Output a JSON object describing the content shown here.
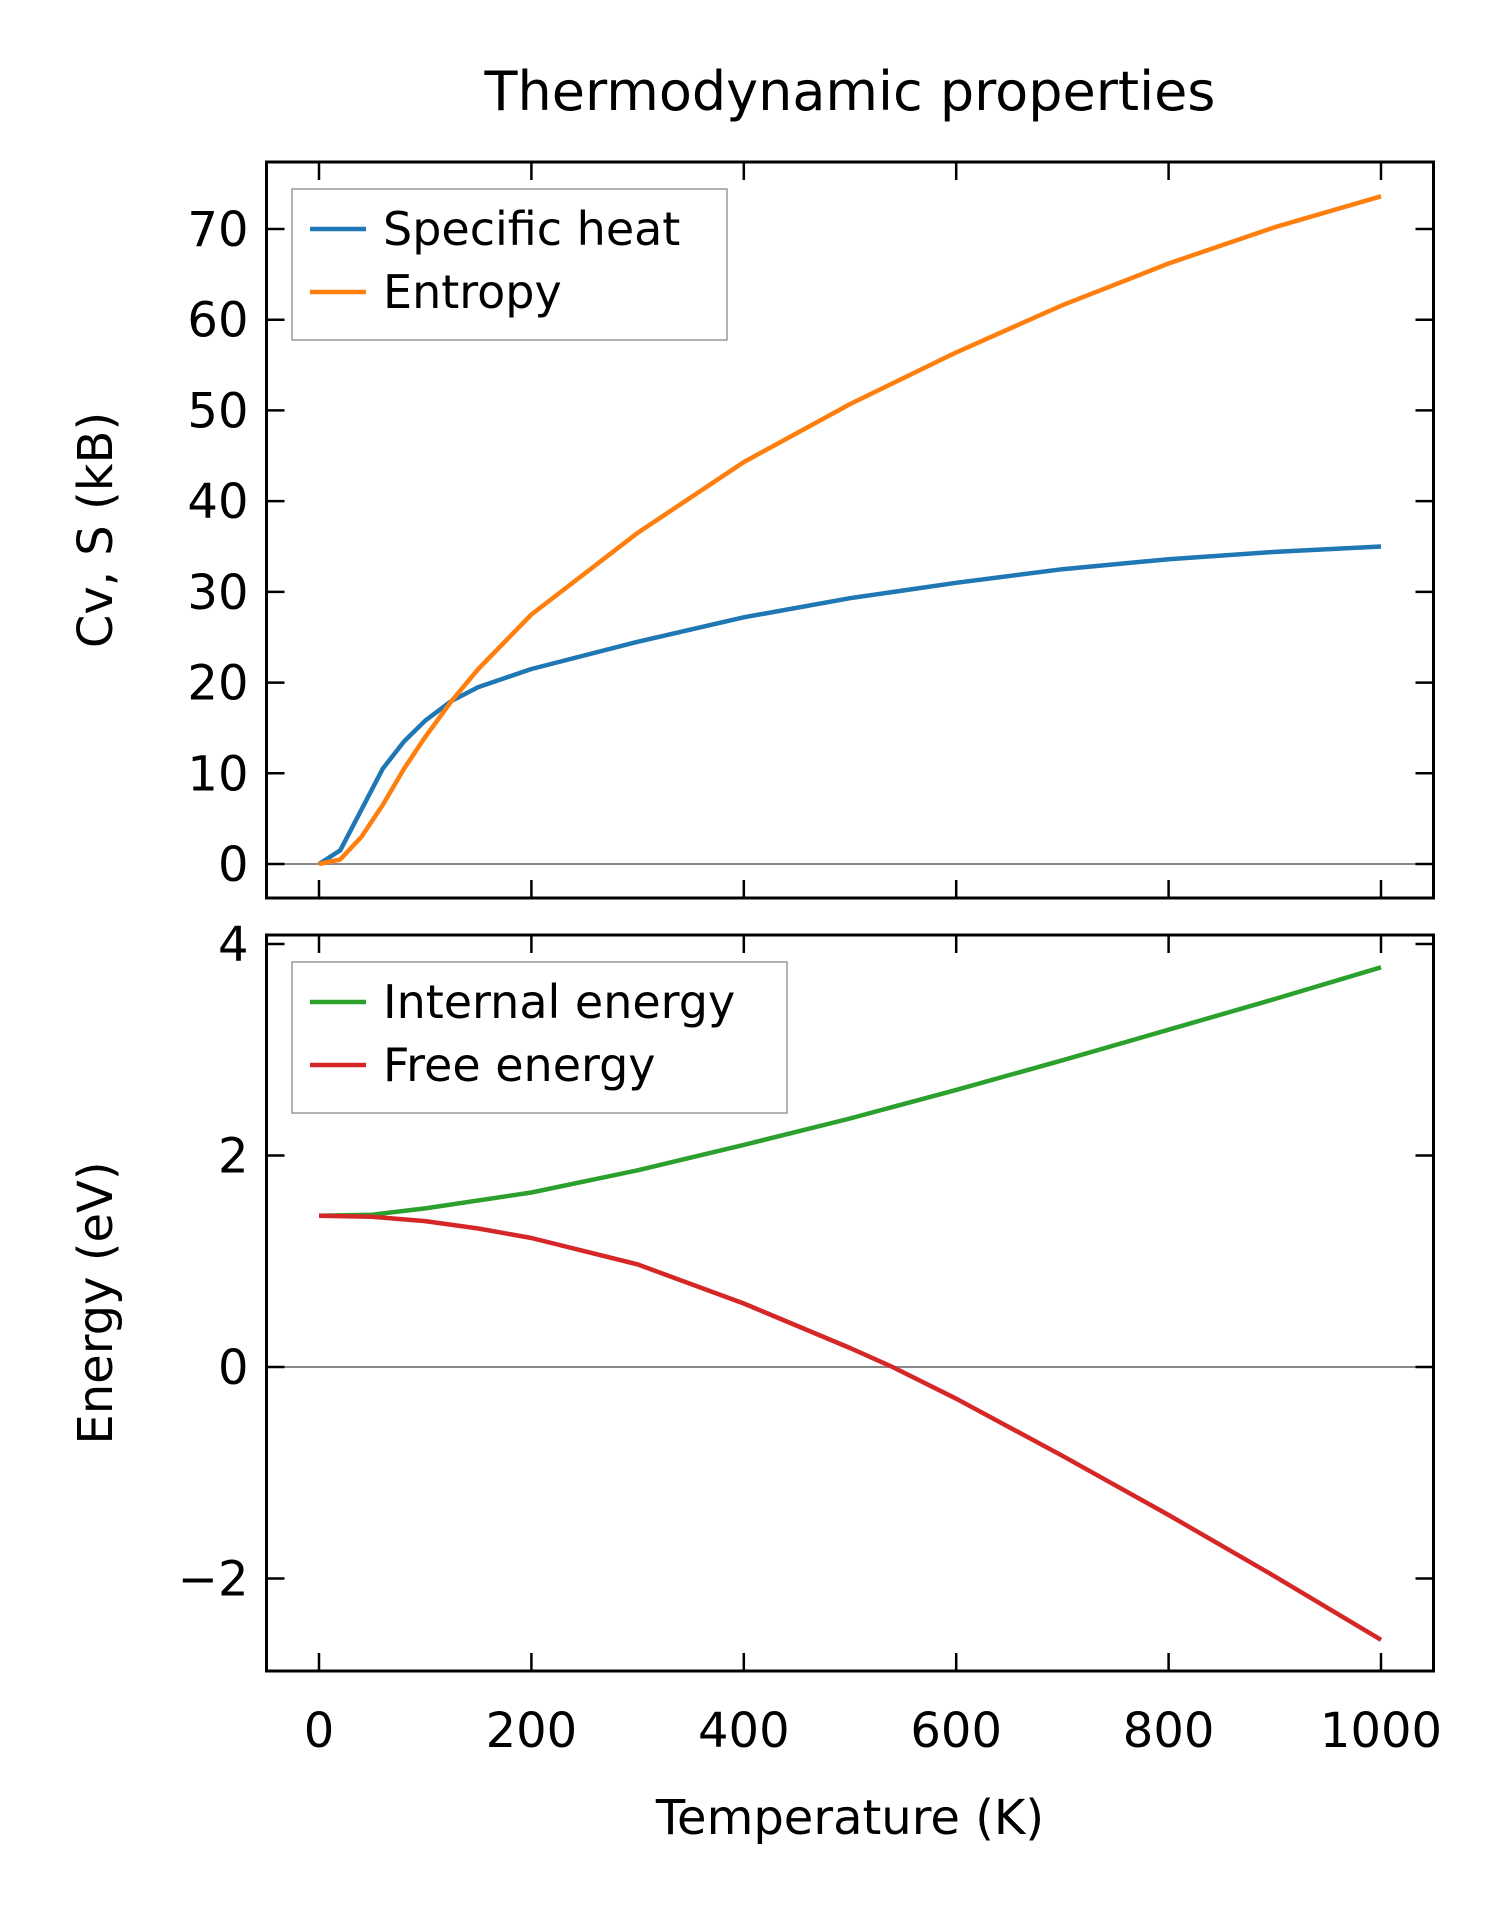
{
  "chart_data": [
    {
      "type": "line",
      "title": "Thermodynamic properties",
      "xlabel": "Temperature (K)",
      "ylabel": "Cv, S (kB)",
      "xlim": [
        -50,
        1050
      ],
      "ylim": [
        -3.5,
        77
      ],
      "xticks": [
        0,
        200,
        400,
        600,
        800,
        1000
      ],
      "yticks": [
        0,
        10,
        20,
        30,
        40,
        50,
        60,
        70
      ],
      "legend": "top-left",
      "series": [
        {
          "name": "Specific heat",
          "color": "#1f77b4",
          "x": [
            0,
            20,
            40,
            60,
            80,
            100,
            125,
            150,
            200,
            300,
            400,
            500,
            600,
            700,
            800,
            900,
            1000
          ],
          "y": [
            0,
            1.5,
            6,
            10.5,
            13.5,
            15.8,
            18,
            19.5,
            21.5,
            24.5,
            27.2,
            29.3,
            31,
            32.5,
            33.6,
            34.4,
            35
          ]
        },
        {
          "name": "Entropy",
          "color": "#ff7f0e",
          "x": [
            0,
            20,
            40,
            60,
            80,
            100,
            125,
            150,
            200,
            300,
            400,
            500,
            600,
            700,
            800,
            900,
            1000
          ],
          "y": [
            0,
            0.5,
            3,
            6.5,
            10.5,
            14,
            18,
            21.5,
            27.5,
            36.5,
            44.3,
            50.7,
            56.4,
            61.6,
            66.2,
            70.2,
            73.6
          ]
        }
      ]
    },
    {
      "type": "line",
      "xlabel": "Temperature (K)",
      "ylabel": "Energy (eV)",
      "xlim": [
        -50,
        1050
      ],
      "ylim": [
        -2.9,
        4.1
      ],
      "xticks": [
        0,
        200,
        400,
        600,
        800,
        1000
      ],
      "yticks": [
        -2,
        0,
        2,
        4
      ],
      "legend": "top-left",
      "series": [
        {
          "name": "Internal energy",
          "color": "#2ca02c",
          "x": [
            0,
            50,
            100,
            200,
            300,
            400,
            500,
            600,
            700,
            800,
            900,
            1000
          ],
          "y": [
            1.43,
            1.44,
            1.5,
            1.65,
            1.86,
            2.1,
            2.35,
            2.62,
            2.9,
            3.19,
            3.48,
            3.78
          ]
        },
        {
          "name": "Free energy",
          "color": "#d62728",
          "x": [
            0,
            50,
            100,
            150,
            200,
            300,
            400,
            500,
            540,
            600,
            700,
            800,
            900,
            1000
          ],
          "y": [
            1.43,
            1.42,
            1.38,
            1.31,
            1.22,
            0.97,
            0.6,
            0.18,
            0,
            -0.3,
            -0.84,
            -1.4,
            -1.98,
            -2.58
          ]
        }
      ]
    }
  ]
}
